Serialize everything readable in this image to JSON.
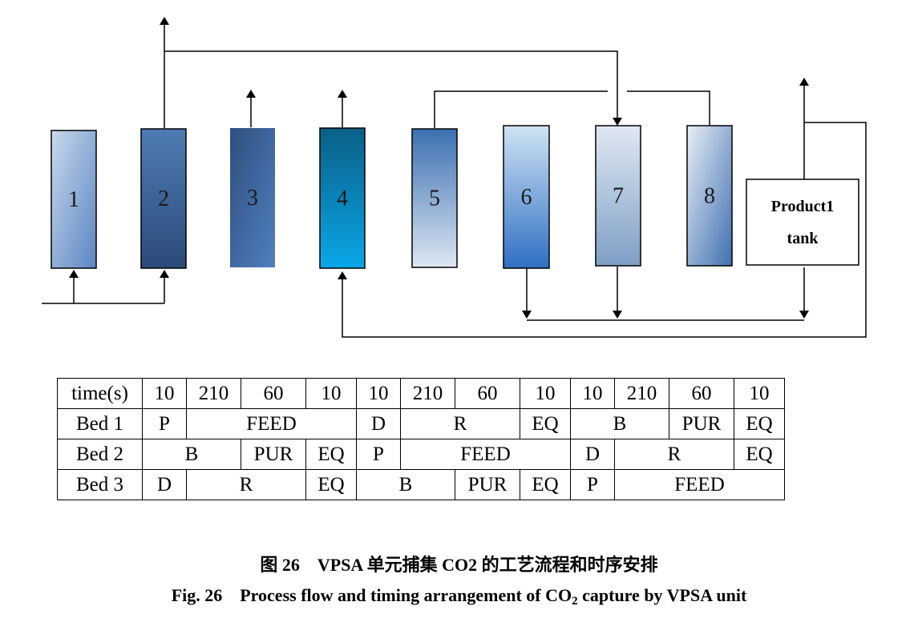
{
  "diagram": {
    "beds": [
      {
        "label": "1",
        "color_top": "#c9d8ec",
        "color_bottom": "#5b86c2"
      },
      {
        "label": "2",
        "color_top": "#4f7cb5",
        "color_bottom": "#2b4a78"
      },
      {
        "label": "3",
        "color_top": "#2f4f7e",
        "color_bottom": "#4f80c0"
      },
      {
        "label": "4",
        "color_top": "#0a5f86",
        "color_bottom": "#0aa7e8"
      },
      {
        "label": "5",
        "color_top": "#3b6fb0",
        "color_bottom": "#dde7f3"
      },
      {
        "label": "6",
        "color_top": "#cfe3f3",
        "color_bottom": "#2f6fc4"
      },
      {
        "label": "7",
        "color_top": "#e0e8f2",
        "color_bottom": "#7f9fc6"
      },
      {
        "label": "8",
        "color_top": "#e8eef6",
        "color_bottom": "#3f6fb0"
      }
    ],
    "tank": {
      "line1": "Product1",
      "line2": "tank"
    }
  },
  "table": {
    "rows": [
      {
        "cells": [
          {
            "text": "time(s)",
            "span": 1
          },
          {
            "text": "10",
            "span": 1
          },
          {
            "text": "210",
            "span": 1
          },
          {
            "text": "60",
            "span": 1
          },
          {
            "text": "10",
            "span": 1
          },
          {
            "text": "10",
            "span": 1
          },
          {
            "text": "210",
            "span": 1
          },
          {
            "text": "60",
            "span": 1
          },
          {
            "text": "10",
            "span": 1
          },
          {
            "text": "10",
            "span": 1
          },
          {
            "text": "210",
            "span": 1
          },
          {
            "text": "60",
            "span": 1
          },
          {
            "text": "10",
            "span": 1
          }
        ]
      },
      {
        "cells": [
          {
            "text": "Bed 1",
            "span": 1
          },
          {
            "text": "P",
            "span": 1
          },
          {
            "text": "FEED",
            "span": 3
          },
          {
            "text": "D",
            "span": 1
          },
          {
            "text": "R",
            "span": 2
          },
          {
            "text": "EQ",
            "span": 1
          },
          {
            "text": "B",
            "span": 2
          },
          {
            "text": "PUR",
            "span": 1
          },
          {
            "text": "EQ",
            "span": 1
          }
        ]
      },
      {
        "cells": [
          {
            "text": "Bed 2",
            "span": 1
          },
          {
            "text": "B",
            "span": 2
          },
          {
            "text": "PUR",
            "span": 1
          },
          {
            "text": "EQ",
            "span": 1
          },
          {
            "text": "P",
            "span": 1
          },
          {
            "text": "FEED",
            "span": 3
          },
          {
            "text": "D",
            "span": 1
          },
          {
            "text": "R",
            "span": 2
          },
          {
            "text": "EQ",
            "span": 1
          }
        ]
      },
      {
        "cells": [
          {
            "text": "Bed 3",
            "span": 1
          },
          {
            "text": "D",
            "span": 1
          },
          {
            "text": "R",
            "span": 2
          },
          {
            "text": "EQ",
            "span": 1
          },
          {
            "text": "B",
            "span": 2
          },
          {
            "text": "PUR",
            "span": 1
          },
          {
            "text": "EQ",
            "span": 1
          },
          {
            "text": "P",
            "span": 1
          },
          {
            "text": "FEED",
            "span": 3
          }
        ]
      }
    ]
  },
  "caption": {
    "cn": "图 26　VPSA 单元捕集 CO2 的工艺流程和时序安排",
    "en_prefix": "Fig. 26　Process flow and timing arrangement of CO",
    "en_sub": "2",
    "en_suffix": " capture by VPSA unit"
  }
}
